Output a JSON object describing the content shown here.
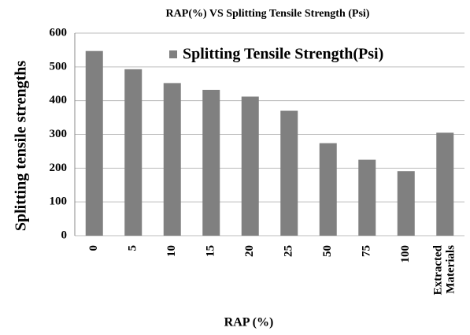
{
  "chart_data": {
    "type": "bar",
    "title": "RAP(%) VS Splitting Tensile Strength (Psi)",
    "x_label": "RAP (%)",
    "y_label": "Splitting tensile strengths",
    "categories": [
      "0",
      "5",
      "10",
      "15",
      "20",
      "25",
      "50",
      "75",
      "100",
      "Extracted Materials"
    ],
    "series": [
      {
        "name": "Splitting Tensile Strength(Psi)",
        "color": "#808080",
        "values": [
          547,
          493,
          452,
          432,
          412,
          370,
          274,
          225,
          191,
          305
        ]
      }
    ],
    "ylim": [
      0,
      600
    ],
    "yticks": [
      0,
      100,
      200,
      300,
      400,
      500,
      600
    ],
    "grid": true
  }
}
